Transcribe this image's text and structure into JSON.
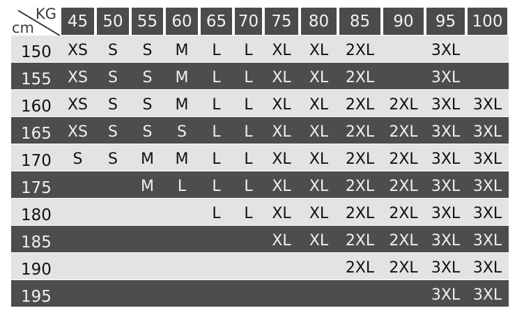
{
  "chart_data": {
    "type": "table",
    "corner": {
      "top_label": "KG",
      "bottom_label": "cm"
    },
    "columns": [
      "45",
      "50",
      "55",
      "60",
      "65",
      "70",
      "75",
      "80",
      "85",
      "90",
      "95",
      "100"
    ],
    "rows": [
      {
        "height": "150",
        "sizes": [
          "XS",
          "S",
          "S",
          "M",
          "L",
          "L",
          "XL",
          "XL",
          "2XL",
          "",
          "3XL",
          ""
        ]
      },
      {
        "height": "155",
        "sizes": [
          "XS",
          "S",
          "S",
          "M",
          "L",
          "L",
          "XL",
          "XL",
          "2XL",
          "",
          "3XL",
          ""
        ]
      },
      {
        "height": "160",
        "sizes": [
          "XS",
          "S",
          "S",
          "M",
          "L",
          "L",
          "XL",
          "XL",
          "2XL",
          "2XL",
          "3XL",
          "3XL"
        ]
      },
      {
        "height": "165",
        "sizes": [
          "XS",
          "S",
          "S",
          "S",
          "L",
          "L",
          "XL",
          "XL",
          "2XL",
          "2XL",
          "3XL",
          "3XL"
        ]
      },
      {
        "height": "170",
        "sizes": [
          "S",
          "S",
          "M",
          "M",
          "L",
          "L",
          "XL",
          "XL",
          "2XL",
          "2XL",
          "3XL",
          "3XL"
        ]
      },
      {
        "height": "175",
        "sizes": [
          "",
          "",
          "M",
          "L",
          "L",
          "L",
          "XL",
          "XL",
          "2XL",
          "2XL",
          "3XL",
          "3XL"
        ]
      },
      {
        "height": "180",
        "sizes": [
          "",
          "",
          "",
          "",
          "L",
          "L",
          "XL",
          "XL",
          "2XL",
          "2XL",
          "3XL",
          "3XL"
        ]
      },
      {
        "height": "185",
        "sizes": [
          "",
          "",
          "",
          "",
          "",
          "",
          "XL",
          "XL",
          "2XL",
          "2XL",
          "3XL",
          "3XL"
        ]
      },
      {
        "height": "190",
        "sizes": [
          "",
          "",
          "",
          "",
          "",
          "",
          "",
          "",
          "2XL",
          "2XL",
          "3XL",
          "3XL"
        ]
      },
      {
        "height": "195",
        "sizes": [
          "",
          "",
          "",
          "",
          "",
          "",
          "",
          "",
          "",
          "",
          "3XL",
          "3XL"
        ]
      }
    ],
    "colors": {
      "header": "#4b4b4b",
      "row_light": "#e3e3e3",
      "row_dark": "#4d4d4d"
    }
  }
}
